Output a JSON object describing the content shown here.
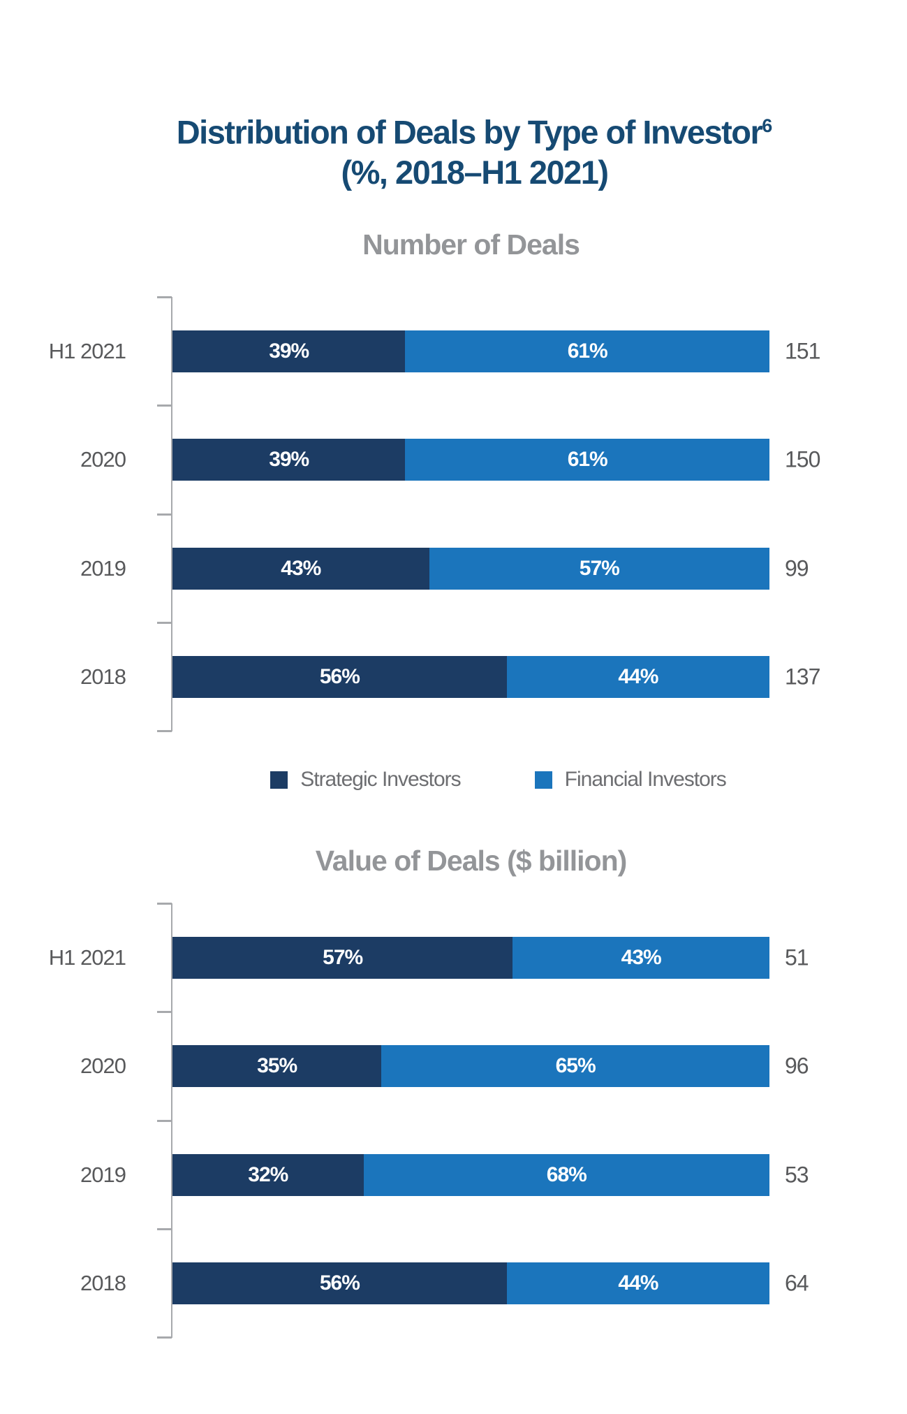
{
  "title": {
    "line1": "Distribution of Deals by Type of Investor",
    "superscript": "6",
    "line2": "(%, 2018–H1 2021)"
  },
  "colors": {
    "navy": "#1C3C64",
    "blue": "#1B75BC",
    "title": "#164A73",
    "subtitle": "#939598",
    "label": "#58595B",
    "legend": "#6D6E71",
    "axis": "#A7A9AC"
  },
  "legend": {
    "items": [
      {
        "label": "Strategic Investors",
        "color": "#1C3C64"
      },
      {
        "label": "Financial Investors",
        "color": "#1B75BC"
      }
    ]
  },
  "charts": [
    {
      "subtitle": "Number of Deals",
      "rows": [
        {
          "label": "H1 2021",
          "strategic_label": "39%",
          "financial_label": "61%",
          "total": "151"
        },
        {
          "label": "2020",
          "strategic_label": "39%",
          "financial_label": "61%",
          "total": "150"
        },
        {
          "label": "2019",
          "strategic_label": "43%",
          "financial_label": "57%",
          "total": "99"
        },
        {
          "label": "2018",
          "strategic_label": "56%",
          "financial_label": "44%",
          "total": "137"
        }
      ]
    },
    {
      "subtitle": "Value of Deals ($ billion)",
      "rows": [
        {
          "label": "H1 2021",
          "strategic_label": "57%",
          "financial_label": "43%",
          "total": "51"
        },
        {
          "label": "2020",
          "strategic_label": "35%",
          "financial_label": "65%",
          "total": "96"
        },
        {
          "label": "2019",
          "strategic_label": "32%",
          "financial_label": "68%",
          "total": "53"
        },
        {
          "label": "2018",
          "strategic_label": "56%",
          "financial_label": "44%",
          "total": "64"
        }
      ]
    }
  ],
  "chart_data": [
    {
      "type": "bar",
      "orientation": "horizontal",
      "stacked": true,
      "unit": "%",
      "title": "Number of Deals",
      "categories": [
        "H1 2021",
        "2020",
        "2019",
        "2018"
      ],
      "series": [
        {
          "name": "Strategic Investors",
          "values": [
            39,
            39,
            43,
            56
          ]
        },
        {
          "name": "Financial Investors",
          "values": [
            61,
            61,
            57,
            44
          ]
        }
      ],
      "totals": [
        151,
        150,
        99,
        137
      ],
      "xlim": [
        0,
        100
      ],
      "grid": false,
      "legend_position": "bottom"
    },
    {
      "type": "bar",
      "orientation": "horizontal",
      "stacked": true,
      "unit": "%",
      "title": "Value of Deals ($ billion)",
      "categories": [
        "H1 2021",
        "2020",
        "2019",
        "2018"
      ],
      "series": [
        {
          "name": "Strategic Investors",
          "values": [
            57,
            35,
            32,
            56
          ]
        },
        {
          "name": "Financial Investors",
          "values": [
            43,
            65,
            68,
            44
          ]
        }
      ],
      "totals": [
        51,
        96,
        53,
        64
      ],
      "xlim": [
        0,
        100
      ],
      "grid": false,
      "legend_position": "none"
    }
  ]
}
